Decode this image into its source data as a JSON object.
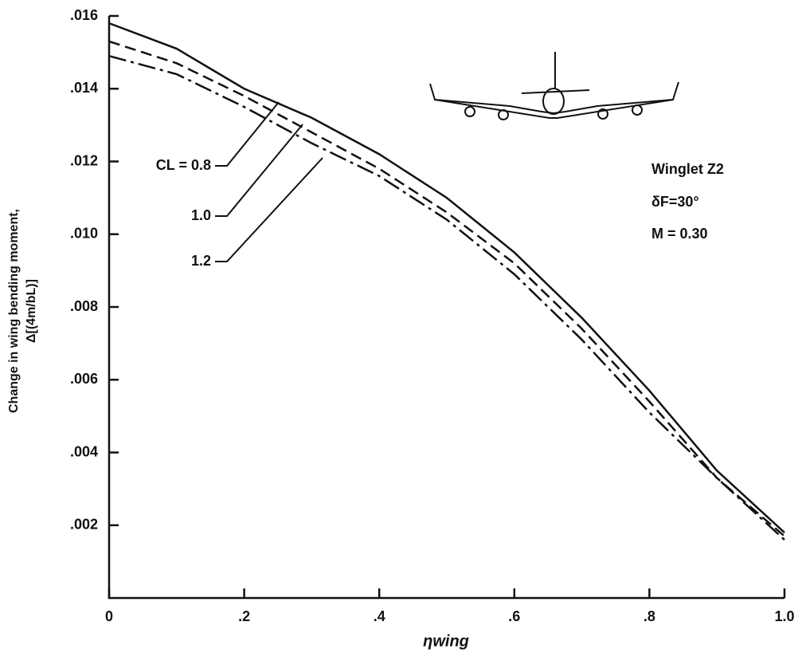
{
  "chart_data": {
    "type": "line",
    "ylabel": "Change in wing bending moment,",
    "ylabel2": "Δ[(4m/bL)]",
    "xlabel": "ηwing",
    "annotations": [
      "Winglet Z2",
      "δF=30°",
      "M = 0.30"
    ],
    "x": [
      0,
      0.1,
      0.2,
      0.3,
      0.4,
      0.5,
      0.6,
      0.7,
      0.8,
      0.9,
      1.0
    ],
    "series": [
      {
        "name": "CL = 0.8",
        "color": "#111111",
        "linestyle": "solid",
        "values": [
          0.0158,
          0.0151,
          0.014,
          0.0132,
          0.0122,
          0.011,
          0.0095,
          0.0077,
          0.0057,
          0.0035,
          0.0018
        ]
      },
      {
        "name": "1.0",
        "color": "#111111",
        "linestyle": "dashed",
        "values": [
          0.0153,
          0.0147,
          0.0138,
          0.0128,
          0.0118,
          0.0106,
          0.0092,
          0.0074,
          0.0054,
          0.0033,
          0.0017
        ]
      },
      {
        "name": "1.2",
        "color": "#111111",
        "linestyle": "dashdot",
        "values": [
          0.0149,
          0.0144,
          0.0135,
          0.0125,
          0.0116,
          0.0104,
          0.0089,
          0.0071,
          0.0051,
          0.0033,
          0.0016
        ]
      }
    ],
    "xlim": [
      0,
      1.0
    ],
    "xticks": [
      0,
      {
        "value": 0.2,
        "label": ".2"
      },
      {
        "value": 0.4,
        "label": ".4"
      },
      {
        "value": 0.6,
        "label": ".6"
      },
      {
        "value": 0.8,
        "label": ".8"
      },
      {
        "value": 1.0,
        "label": "1.0"
      }
    ],
    "ylim": [
      0,
      0.016
    ],
    "yticks": [
      {
        "value": 0.002,
        "label": ".002"
      },
      {
        "value": 0.004,
        "label": ".004"
      },
      {
        "value": 0.006,
        "label": ".006"
      },
      {
        "value": 0.008,
        "label": ".008"
      },
      {
        "value": 0.01,
        "label": ".010"
      },
      {
        "value": 0.012,
        "label": ".012"
      },
      {
        "value": 0.014,
        "label": ".014"
      },
      {
        "value": 0.016,
        "label": ".016"
      }
    ],
    "grid": false
  }
}
